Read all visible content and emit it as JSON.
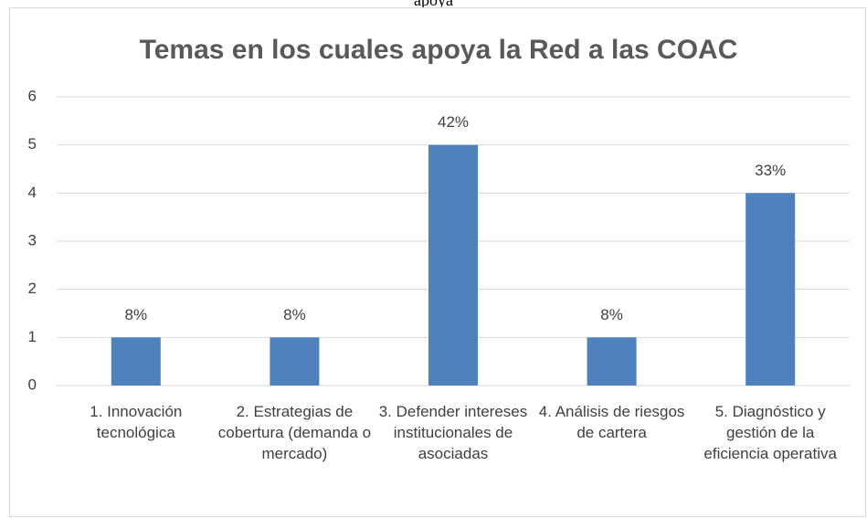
{
  "top_fragment": "apoya",
  "chart_data": {
    "type": "bar",
    "title": "Temas en los cuales apoya la Red a las COAC",
    "categories": [
      "1. Innovación tecnológica",
      "2. Estrategias de cobertura (demanda o mercado)",
      "3. Defender intereses institucionales de asociadas",
      "4. Análisis de riesgos de cartera",
      "5. Diagnóstico y gestión de la eficiencia operativa"
    ],
    "values": [
      1,
      1,
      5,
      1,
      4
    ],
    "annotations": [
      "8%",
      "8%",
      "42%",
      "8%",
      "33%"
    ],
    "color": "#4f81bd",
    "ylim": [
      0,
      6
    ],
    "yticks": [
      0,
      1,
      2,
      3,
      4,
      5,
      6
    ],
    "grid": true
  }
}
